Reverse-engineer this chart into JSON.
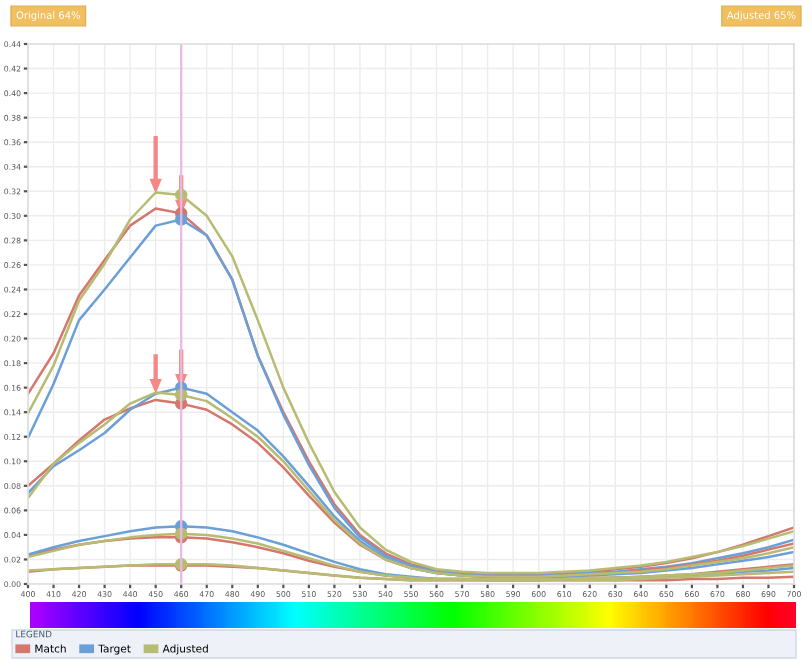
{
  "chart_data": {
    "type": "line",
    "x": [
      400,
      410,
      420,
      430,
      440,
      450,
      460,
      470,
      480,
      490,
      500,
      510,
      520,
      530,
      540,
      550,
      560,
      570,
      580,
      590,
      600,
      610,
      620,
      630,
      640,
      650,
      660,
      670,
      680,
      690,
      700
    ],
    "series": [
      {
        "name": "Match",
        "color": "#d4776c",
        "values": [
          0.155,
          0.188,
          0.235,
          0.264,
          0.292,
          0.306,
          0.302,
          0.284,
          0.248,
          0.186,
          0.14,
          0.1,
          0.065,
          0.04,
          0.025,
          0.016,
          0.011,
          0.009,
          0.008,
          0.008,
          0.008,
          0.009,
          0.01,
          0.012,
          0.014,
          0.017,
          0.021,
          0.026,
          0.032,
          0.039,
          0.046
        ]
      },
      {
        "name": "Target",
        "color": "#6a9fd8",
        "values": [
          0.119,
          0.163,
          0.215,
          0.24,
          0.266,
          0.292,
          0.297,
          0.284,
          0.248,
          0.186,
          0.138,
          0.097,
          0.062,
          0.038,
          0.023,
          0.015,
          0.01,
          0.008,
          0.007,
          0.007,
          0.007,
          0.008,
          0.009,
          0.01,
          0.012,
          0.014,
          0.017,
          0.021,
          0.025,
          0.03,
          0.036
        ]
      },
      {
        "name": "Adjusted",
        "color": "#b8bb72",
        "values": [
          0.139,
          0.178,
          0.231,
          0.261,
          0.297,
          0.319,
          0.317,
          0.3,
          0.267,
          0.215,
          0.16,
          0.115,
          0.075,
          0.046,
          0.028,
          0.018,
          0.012,
          0.01,
          0.009,
          0.009,
          0.009,
          0.01,
          0.011,
          0.013,
          0.015,
          0.018,
          0.022,
          0.026,
          0.031,
          0.037,
          0.043
        ]
      },
      {
        "color": "#d4776c",
        "values": [
          0.08,
          0.098,
          0.117,
          0.134,
          0.143,
          0.15,
          0.147,
          0.142,
          0.13,
          0.115,
          0.095,
          0.072,
          0.05,
          0.032,
          0.02,
          0.013,
          0.009,
          0.007,
          0.006,
          0.006,
          0.006,
          0.007,
          0.008,
          0.009,
          0.011,
          0.013,
          0.016,
          0.019,
          0.023,
          0.028,
          0.033
        ]
      },
      {
        "color": "#6a9fd8",
        "values": [
          0.074,
          0.096,
          0.109,
          0.123,
          0.142,
          0.155,
          0.16,
          0.155,
          0.14,
          0.125,
          0.104,
          0.08,
          0.055,
          0.035,
          0.021,
          0.013,
          0.009,
          0.007,
          0.006,
          0.006,
          0.006,
          0.006,
          0.007,
          0.008,
          0.009,
          0.011,
          0.013,
          0.016,
          0.019,
          0.022,
          0.026
        ]
      },
      {
        "color": "#b8bb72",
        "values": [
          0.07,
          0.098,
          0.115,
          0.13,
          0.147,
          0.156,
          0.154,
          0.149,
          0.135,
          0.12,
          0.1,
          0.076,
          0.052,
          0.033,
          0.02,
          0.013,
          0.009,
          0.007,
          0.006,
          0.006,
          0.006,
          0.007,
          0.008,
          0.009,
          0.01,
          0.012,
          0.015,
          0.018,
          0.021,
          0.025,
          0.03
        ]
      },
      {
        "color": "#d4776c",
        "values": [
          0.023,
          0.028,
          0.032,
          0.035,
          0.037,
          0.038,
          0.038,
          0.037,
          0.034,
          0.03,
          0.025,
          0.019,
          0.014,
          0.01,
          0.007,
          0.005,
          0.004,
          0.004,
          0.004,
          0.004,
          0.004,
          0.004,
          0.005,
          0.005,
          0.006,
          0.007,
          0.008,
          0.01,
          0.012,
          0.014,
          0.016
        ]
      },
      {
        "color": "#6a9fd8",
        "values": [
          0.024,
          0.03,
          0.035,
          0.039,
          0.043,
          0.046,
          0.047,
          0.046,
          0.043,
          0.038,
          0.032,
          0.025,
          0.018,
          0.012,
          0.008,
          0.006,
          0.004,
          0.004,
          0.003,
          0.003,
          0.003,
          0.004,
          0.004,
          0.005,
          0.005,
          0.006,
          0.007,
          0.008,
          0.01,
          0.011,
          0.013
        ]
      },
      {
        "color": "#b8bb72",
        "values": [
          0.022,
          0.027,
          0.032,
          0.035,
          0.038,
          0.04,
          0.041,
          0.04,
          0.037,
          0.033,
          0.027,
          0.021,
          0.015,
          0.01,
          0.007,
          0.005,
          0.004,
          0.004,
          0.004,
          0.004,
          0.004,
          0.004,
          0.005,
          0.005,
          0.006,
          0.007,
          0.008,
          0.009,
          0.011,
          0.013,
          0.015
        ]
      },
      {
        "color": "#d4776c",
        "values": [
          0.01,
          0.012,
          0.013,
          0.014,
          0.015,
          0.015,
          0.015,
          0.015,
          0.014,
          0.013,
          0.011,
          0.009,
          0.007,
          0.005,
          0.004,
          0.003,
          0.003,
          0.003,
          0.003,
          0.003,
          0.003,
          0.003,
          0.003,
          0.003,
          0.003,
          0.003,
          0.004,
          0.004,
          0.005,
          0.005,
          0.006
        ]
      },
      {
        "color": "#b8bb72",
        "values": [
          0.011,
          0.012,
          0.013,
          0.014,
          0.015,
          0.016,
          0.016,
          0.016,
          0.015,
          0.013,
          0.011,
          0.009,
          0.007,
          0.005,
          0.004,
          0.003,
          0.003,
          0.003,
          0.003,
          0.003,
          0.003,
          0.003,
          0.003,
          0.003,
          0.004,
          0.005,
          0.006,
          0.007,
          0.008,
          0.009,
          0.01
        ]
      }
    ],
    "xlim": [
      400,
      700
    ],
    "xticks": [
      400,
      410,
      420,
      430,
      440,
      450,
      460,
      470,
      480,
      490,
      500,
      510,
      520,
      530,
      540,
      550,
      560,
      570,
      580,
      590,
      600,
      610,
      620,
      630,
      640,
      650,
      660,
      670,
      680,
      690,
      700
    ],
    "ylim": [
      0,
      0.44
    ],
    "yticks": [
      {
        "value": 0,
        "label": "0.00"
      },
      {
        "value": 0.02,
        "label": "0.02"
      },
      {
        "value": 0.04,
        "label": "0.04"
      },
      {
        "value": 0.06,
        "label": "0.06"
      },
      {
        "value": 0.08,
        "label": "0.08"
      },
      {
        "value": 0.1,
        "label": "0.10"
      },
      {
        "value": 0.12,
        "label": "0.12"
      },
      {
        "value": 0.14,
        "label": "0.14"
      },
      {
        "value": 0.16,
        "label": "0.16"
      },
      {
        "value": 0.18,
        "label": "0.18"
      },
      {
        "value": 0.2,
        "label": "0.20"
      },
      {
        "value": 0.22,
        "label": "0.22"
      },
      {
        "value": 0.24,
        "label": "0.24"
      },
      {
        "value": 0.26,
        "label": "0.26"
      },
      {
        "value": 0.28,
        "label": "0.28"
      },
      {
        "value": 0.3,
        "label": "0.30"
      },
      {
        "value": 0.32,
        "label": "0.32"
      },
      {
        "value": 0.34,
        "label": "0.34"
      },
      {
        "value": 0.36,
        "label": "0.36"
      },
      {
        "value": 0.38,
        "label": "0.38"
      },
      {
        "value": 0.4,
        "label": "0.40"
      },
      {
        "value": 0.42,
        "label": "0.42"
      },
      {
        "value": 0.44,
        "label": "0.44"
      }
    ],
    "ref_lines": [
      {
        "axis": "x",
        "value": 460,
        "color": "#e8b8e0"
      }
    ],
    "grid": true,
    "legend": "bottom",
    "legend_title": "LEGEND",
    "annotations": [
      "Original 64%",
      "Adjusted 65%"
    ]
  }
}
